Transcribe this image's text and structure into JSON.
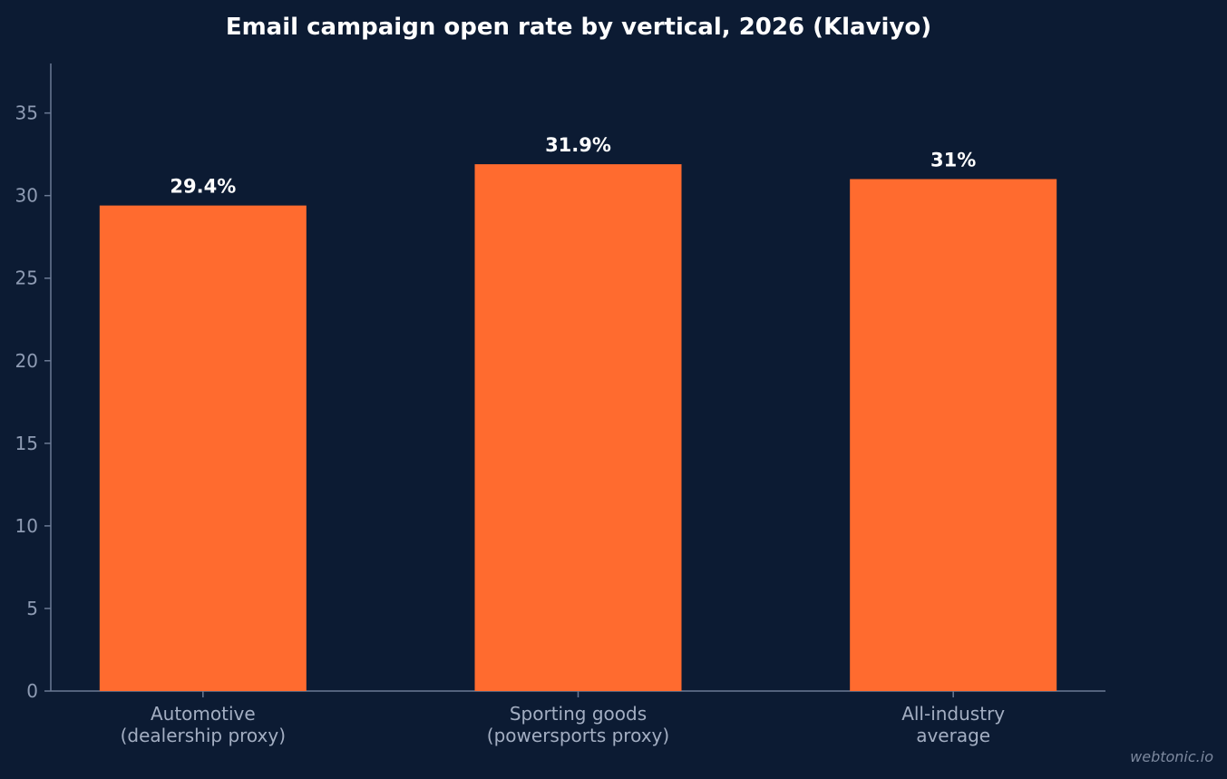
{
  "chart_data": {
    "type": "bar",
    "title": "Email campaign open rate by vertical, 2026 (Klaviyo)",
    "categories": [
      [
        "Automotive",
        "(dealership proxy)"
      ],
      [
        "Sporting goods",
        "(powersports proxy)"
      ],
      [
        "All-industry",
        "average"
      ]
    ],
    "values": [
      29.4,
      31.9,
      31.0
    ],
    "value_labels": [
      "29.4%",
      "31.9%",
      "31%"
    ],
    "y_ticks": [
      0,
      5,
      10,
      15,
      20,
      25,
      30,
      35
    ],
    "ylim": [
      0,
      38
    ],
    "xlabel": "",
    "ylabel": "",
    "grid": false,
    "legend": "none",
    "colors": {
      "background": "#0c1b33",
      "bar": "#ff6b2f",
      "axis": "#6b7a94",
      "tick_text": "#8e9bb3",
      "title_text": "#ffffff"
    }
  },
  "watermark": "webtonic.io"
}
